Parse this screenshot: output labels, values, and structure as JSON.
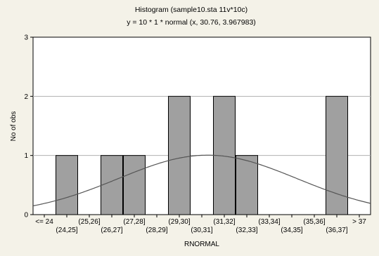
{
  "colors": {
    "background": "#F4F2E8",
    "plot_area": "#FFFFFF",
    "bar_fill": "#A0A0A0",
    "bar_stroke": "#000000",
    "curve": "#555555",
    "grid": "#B0B0B0"
  },
  "chart_data": {
    "type": "bar",
    "title": "Histogram (sample10.sta 11v*10c)",
    "subtitle": "y = 10 * 1 * normal (x, 30.76, 3.967983)",
    "xlabel": "RNORMAL",
    "ylabel": "No of obs",
    "ylim": [
      0,
      3
    ],
    "yticks": [
      "0",
      "1",
      "2",
      "3"
    ],
    "grid": true,
    "legend": "none",
    "categories": [
      "<= 24",
      "(24,25]",
      "(25,26]",
      "(26,27]",
      "(27,28]",
      "(28,29]",
      "(29,30]",
      "(30,31]",
      "(31,32]",
      "(32,33]",
      "(33,34]",
      "(34,35]",
      "(35,36]",
      "(36,37]",
      "> 37"
    ],
    "values": [
      0,
      1,
      0,
      1,
      1,
      0,
      2,
      0,
      2,
      1,
      0,
      0,
      0,
      2,
      0
    ],
    "fit_curve": {
      "distribution": "normal",
      "mean": 30.76,
      "sd": 3.967983,
      "n": 10,
      "bin_width": 1
    }
  }
}
